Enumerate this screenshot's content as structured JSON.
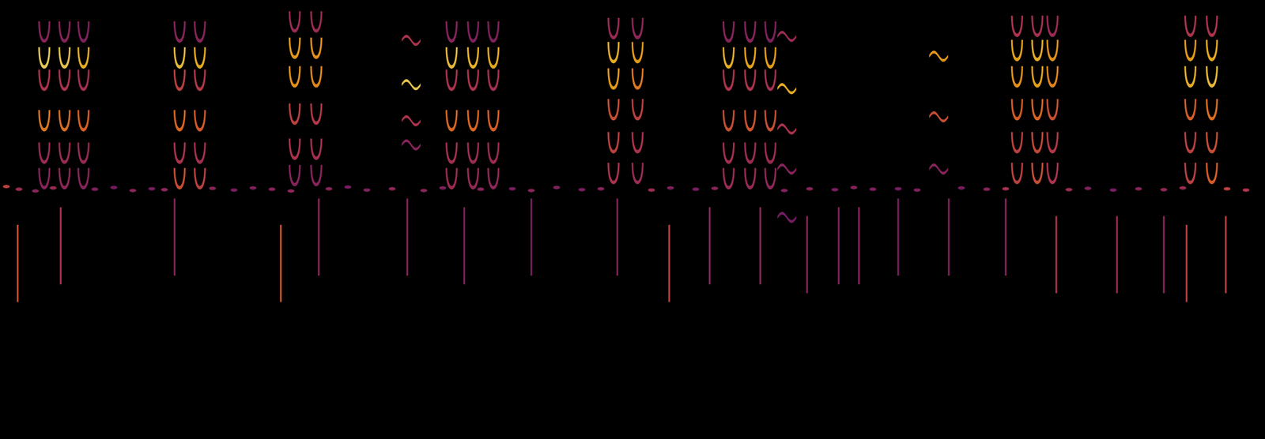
{
  "chart_data": {
    "type": "scatter",
    "xlim": [
      0,
      100
    ],
    "ylim": [
      0,
      100
    ],
    "zlim": [
      0,
      100
    ],
    "tick_labels": false,
    "grid": false,
    "series": [
      {
        "marker": "u",
        "values": [
          [
            3.5,
            92.7,
            40
          ],
          [
            3.5,
            86.8,
            92
          ],
          [
            3.5,
            81.7,
            50
          ],
          [
            3.5,
            72.5,
            72
          ],
          [
            3.5,
            65.1,
            45
          ],
          [
            3.5,
            59.3,
            40
          ],
          [
            5.1,
            92.7,
            40
          ],
          [
            5.1,
            86.8,
            90
          ],
          [
            5.1,
            81.7,
            50
          ],
          [
            5.1,
            72.5,
            70
          ],
          [
            5.1,
            65.1,
            45
          ],
          [
            5.1,
            59.3,
            42
          ],
          [
            6.6,
            92.7,
            38
          ],
          [
            6.6,
            86.8,
            85
          ],
          [
            6.6,
            81.7,
            48
          ],
          [
            6.6,
            72.5,
            66
          ],
          [
            6.6,
            65.1,
            44
          ],
          [
            6.6,
            59.3,
            40
          ],
          [
            14.2,
            92.7,
            40
          ],
          [
            14.2,
            86.8,
            88
          ],
          [
            14.2,
            81.7,
            55
          ],
          [
            14.2,
            72.5,
            68
          ],
          [
            14.2,
            65.1,
            50
          ],
          [
            14.2,
            59.3,
            60
          ],
          [
            15.8,
            92.7,
            40
          ],
          [
            15.8,
            86.8,
            84
          ],
          [
            15.8,
            81.7,
            52
          ],
          [
            15.8,
            72.5,
            64
          ],
          [
            15.8,
            65.1,
            48
          ],
          [
            15.8,
            59.3,
            55
          ],
          [
            23.3,
            95.0,
            45
          ],
          [
            23.3,
            89.0,
            80
          ],
          [
            23.3,
            82.5,
            78
          ],
          [
            23.3,
            74.0,
            55
          ],
          [
            23.3,
            66.0,
            50
          ],
          [
            23.3,
            60.0,
            40
          ],
          [
            25.0,
            95.0,
            45
          ],
          [
            25.0,
            89.0,
            78
          ],
          [
            25.0,
            82.5,
            76
          ],
          [
            25.0,
            74.0,
            52
          ],
          [
            25.0,
            66.0,
            48
          ],
          [
            25.0,
            60.0,
            40
          ],
          [
            35.7,
            92.7,
            40
          ],
          [
            35.7,
            86.8,
            88
          ],
          [
            35.7,
            81.7,
            50
          ],
          [
            35.7,
            72.5,
            68
          ],
          [
            35.7,
            65.1,
            48
          ],
          [
            35.7,
            59.3,
            45
          ],
          [
            37.4,
            92.7,
            38
          ],
          [
            37.4,
            86.8,
            86
          ],
          [
            37.4,
            81.7,
            50
          ],
          [
            37.4,
            72.5,
            68
          ],
          [
            37.4,
            65.1,
            46
          ],
          [
            37.4,
            59.3,
            44
          ],
          [
            39.0,
            92.7,
            38
          ],
          [
            39.0,
            86.8,
            84
          ],
          [
            39.0,
            81.7,
            48
          ],
          [
            39.0,
            72.5,
            66
          ],
          [
            39.0,
            65.1,
            45
          ],
          [
            39.0,
            59.3,
            42
          ],
          [
            48.5,
            93.5,
            45
          ],
          [
            48.5,
            88.0,
            85
          ],
          [
            48.5,
            82.0,
            80
          ],
          [
            48.5,
            75.0,
            60
          ],
          [
            48.5,
            67.5,
            55
          ],
          [
            48.5,
            60.5,
            50
          ],
          [
            50.4,
            93.5,
            42
          ],
          [
            50.4,
            88.0,
            80
          ],
          [
            50.4,
            82.0,
            72
          ],
          [
            50.4,
            75.0,
            55
          ],
          [
            50.4,
            67.5,
            50
          ],
          [
            50.4,
            60.5,
            45
          ],
          [
            57.6,
            92.7,
            40
          ],
          [
            57.6,
            86.8,
            85
          ],
          [
            57.6,
            81.7,
            50
          ],
          [
            57.6,
            72.5,
            60
          ],
          [
            57.6,
            65.1,
            48
          ],
          [
            57.6,
            59.3,
            45
          ],
          [
            59.3,
            92.7,
            40
          ],
          [
            59.3,
            86.8,
            82
          ],
          [
            59.3,
            81.7,
            50
          ],
          [
            59.3,
            72.5,
            62
          ],
          [
            59.3,
            65.1,
            46
          ],
          [
            59.3,
            59.3,
            44
          ],
          [
            60.9,
            92.7,
            38
          ],
          [
            60.9,
            86.8,
            80
          ],
          [
            60.9,
            81.7,
            48
          ],
          [
            60.9,
            72.5,
            60
          ],
          [
            60.9,
            65.1,
            45
          ],
          [
            60.9,
            59.3,
            42
          ],
          [
            80.4,
            94.0,
            50
          ],
          [
            80.4,
            88.5,
            82
          ],
          [
            80.4,
            82.5,
            78
          ],
          [
            80.4,
            75.0,
            65
          ],
          [
            80.4,
            67.5,
            55
          ],
          [
            80.4,
            60.5,
            55
          ],
          [
            82.0,
            94.0,
            48
          ],
          [
            82.0,
            88.5,
            85
          ],
          [
            82.0,
            82.5,
            82
          ],
          [
            82.0,
            75.0,
            68
          ],
          [
            82.0,
            67.5,
            58
          ],
          [
            82.0,
            60.5,
            60
          ],
          [
            83.2,
            94.0,
            45
          ],
          [
            83.2,
            88.5,
            78
          ],
          [
            83.2,
            82.5,
            75
          ],
          [
            83.2,
            75.0,
            60
          ],
          [
            83.2,
            67.5,
            52
          ],
          [
            83.2,
            60.5,
            50
          ],
          [
            94.1,
            94.0,
            50
          ],
          [
            94.1,
            88.5,
            80
          ],
          [
            94.1,
            82.5,
            85
          ],
          [
            94.1,
            75.0,
            65
          ],
          [
            94.1,
            67.5,
            55
          ],
          [
            94.1,
            60.5,
            55
          ],
          [
            95.8,
            94.0,
            50
          ],
          [
            95.8,
            88.5,
            84
          ],
          [
            95.8,
            82.5,
            88
          ],
          [
            95.8,
            75.0,
            70
          ],
          [
            95.8,
            67.5,
            60
          ],
          [
            95.8,
            60.5,
            65
          ]
        ]
      },
      {
        "marker": "wave",
        "values": [
          [
            32.5,
            90.8,
            50
          ],
          [
            32.5,
            80.7,
            90
          ],
          [
            32.5,
            72.5,
            50
          ],
          [
            32.5,
            67.0,
            40
          ],
          [
            62.2,
            91.7,
            45
          ],
          [
            62.2,
            79.8,
            85
          ],
          [
            62.2,
            70.6,
            50
          ],
          [
            62.2,
            61.5,
            40
          ],
          [
            62.2,
            50.5,
            35
          ],
          [
            74.2,
            87.2,
            80
          ],
          [
            74.2,
            73.4,
            60
          ],
          [
            74.2,
            61.5,
            40
          ]
        ]
      },
      {
        "marker": "dot",
        "values": [
          [
            0.5,
            57.5,
            55
          ],
          [
            1.5,
            56.9,
            45
          ],
          [
            2.8,
            56.5,
            40
          ],
          [
            4.2,
            57.2,
            45
          ],
          [
            7.5,
            56.9,
            38
          ],
          [
            9.0,
            57.3,
            35
          ],
          [
            10.5,
            56.6,
            40
          ],
          [
            12.0,
            57.0,
            36
          ],
          [
            13.0,
            56.8,
            42
          ],
          [
            16.8,
            57.1,
            40
          ],
          [
            18.5,
            56.7,
            36
          ],
          [
            20.0,
            57.2,
            38
          ],
          [
            21.5,
            56.9,
            40
          ],
          [
            23.0,
            56.5,
            42
          ],
          [
            26.0,
            57.0,
            40
          ],
          [
            27.5,
            57.4,
            36
          ],
          [
            29.0,
            56.7,
            38
          ],
          [
            31.0,
            57.0,
            42
          ],
          [
            33.5,
            56.6,
            40
          ],
          [
            35.0,
            57.2,
            38
          ],
          [
            38.0,
            56.9,
            40
          ],
          [
            40.5,
            57.0,
            36
          ],
          [
            42.0,
            56.6,
            40
          ],
          [
            44.0,
            57.3,
            38
          ],
          [
            46.0,
            56.8,
            36
          ],
          [
            47.5,
            57.0,
            40
          ],
          [
            51.5,
            56.7,
            45
          ],
          [
            53.0,
            57.2,
            38
          ],
          [
            55.0,
            56.9,
            36
          ],
          [
            56.5,
            57.1,
            40
          ],
          [
            62.0,
            56.6,
            38
          ],
          [
            64.0,
            57.0,
            40
          ],
          [
            66.0,
            56.8,
            36
          ],
          [
            67.5,
            57.3,
            40
          ],
          [
            69.0,
            56.9,
            38
          ],
          [
            71.0,
            57.0,
            36
          ],
          [
            72.5,
            56.7,
            38
          ],
          [
            76.0,
            57.2,
            36
          ],
          [
            78.0,
            56.9,
            40
          ],
          [
            79.5,
            57.0,
            48
          ],
          [
            84.5,
            56.8,
            45
          ],
          [
            86.0,
            57.1,
            38
          ],
          [
            88.0,
            56.7,
            36
          ],
          [
            90.0,
            57.0,
            40
          ],
          [
            92.0,
            56.8,
            42
          ],
          [
            93.5,
            57.2,
            45
          ],
          [
            97.0,
            57.0,
            55
          ],
          [
            98.5,
            56.7,
            50
          ]
        ]
      },
      {
        "marker": "click",
        "values": [
          [
            1.4,
            40.0,
            60
          ],
          [
            4.8,
            44.0,
            50
          ],
          [
            13.8,
            46.0,
            40
          ],
          [
            22.2,
            40.0,
            62
          ],
          [
            25.2,
            46.0,
            42
          ],
          [
            32.2,
            46.0,
            40
          ],
          [
            36.7,
            44.0,
            38
          ],
          [
            42.0,
            46.0,
            36
          ],
          [
            48.8,
            46.0,
            40
          ],
          [
            52.9,
            40.0,
            55
          ],
          [
            56.1,
            44.0,
            40
          ],
          [
            60.1,
            44.0,
            42
          ],
          [
            63.8,
            42.0,
            40
          ],
          [
            66.3,
            44.0,
            38
          ],
          [
            67.9,
            44.0,
            40
          ],
          [
            71.0,
            46.0,
            36
          ],
          [
            75.0,
            46.0,
            38
          ],
          [
            79.5,
            46.0,
            40
          ],
          [
            83.5,
            42.0,
            50
          ],
          [
            88.3,
            42.0,
            45
          ],
          [
            92.0,
            42.0,
            40
          ],
          [
            93.8,
            40.0,
            55
          ],
          [
            96.9,
            42.0,
            55
          ]
        ]
      }
    ]
  }
}
